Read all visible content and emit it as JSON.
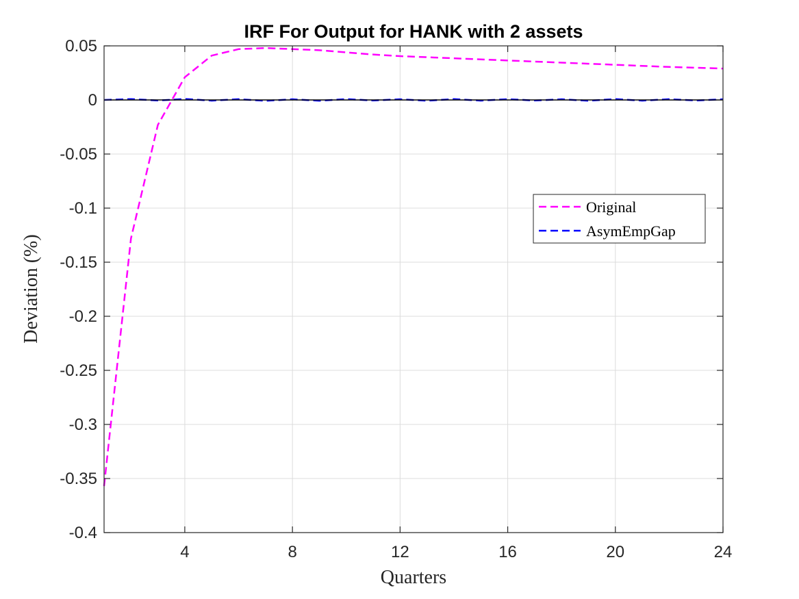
{
  "chart_data": {
    "type": "line",
    "title": "IRF For Output for HANK with 2 assets",
    "xlabel": "Quarters",
    "ylabel": "Deviation (%)",
    "xlim": [
      1,
      24
    ],
    "ylim": [
      -0.4,
      0.05
    ],
    "xticks": [
      4,
      8,
      12,
      16,
      20,
      24
    ],
    "yticks": [
      0.05,
      0,
      -0.05,
      -0.1,
      -0.15,
      -0.2,
      -0.25,
      -0.3,
      -0.35,
      -0.4
    ],
    "ytick_labels": [
      "0.05",
      "0",
      "-0.05",
      "-0.1",
      "-0.15",
      "-0.2",
      "-0.25",
      "-0.3",
      "-0.35",
      "-0.4"
    ],
    "grid": true,
    "legend_position": "right",
    "reference_line_y": 0,
    "x": [
      1,
      2,
      3,
      4,
      5,
      6,
      7,
      8,
      9,
      10,
      11,
      12,
      13,
      14,
      15,
      16,
      17,
      18,
      19,
      20,
      21,
      22,
      23,
      24
    ],
    "series": [
      {
        "name": "Original",
        "color": "#ff00ff",
        "style": "dashed",
        "values": [
          -0.357,
          -0.128,
          -0.023,
          0.021,
          0.041,
          0.047,
          0.048,
          0.047,
          0.046,
          0.044,
          0.042,
          0.0405,
          0.0395,
          0.0385,
          0.0375,
          0.0365,
          0.0355,
          0.0345,
          0.0335,
          0.0325,
          0.0315,
          0.0305,
          0.0298,
          0.029
        ]
      },
      {
        "name": "AsymEmpGap",
        "color": "#0000ff",
        "style": "dashed",
        "values": [
          0,
          0.0008,
          -0.0005,
          0.0009,
          -0.0006,
          0.0007,
          -0.0008,
          0.0006,
          -0.0007,
          0.0008,
          -0.0005,
          0.0006,
          -0.0007,
          0.0008,
          -0.0006,
          0.0007,
          -0.0005,
          0.0006,
          -0.0007,
          0.0008,
          -0.0006,
          0.0007,
          -0.0005,
          0.0006
        ]
      }
    ]
  }
}
